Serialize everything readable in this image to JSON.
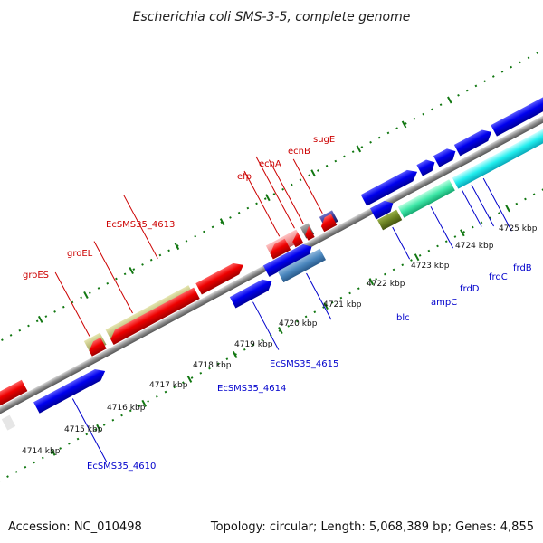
{
  "title": "Escherichia coli SMS-3-5, complete genome",
  "footer": {
    "accession": "Accession: NC_010498",
    "summary": "Topology: circular; Length: 5,068,389 bp; Genes: 4,855"
  },
  "scale_labels": [
    "4714 kbp",
    "4715 kbp",
    "4716 kbp",
    "4717 kbp",
    "4718 kbp",
    "4719 kbp",
    "4720 kbp",
    "4721 kbp",
    "4722 kbp",
    "4723 kbp",
    "4724 kbp",
    "4725 kbp"
  ],
  "top_gene_labels": [
    "groES",
    "groEL",
    "EcSMS35_4613",
    "efp",
    "ecnA",
    "ecnB",
    "sugE"
  ],
  "bottom_gene_labels": [
    "EcSMS35_4610",
    "EcSMS35_4614",
    "EcSMS35_4615",
    "blc",
    "ampC",
    "frdD",
    "frdC",
    "frdB"
  ],
  "colors": {
    "forward_strand": "#0000ee",
    "reverse_strand": "#ee0000",
    "tick_dots": "#117711",
    "backbone": "#8c8c8c",
    "top_label": "#cc0000",
    "bottom_label": "#0000cc"
  }
}
